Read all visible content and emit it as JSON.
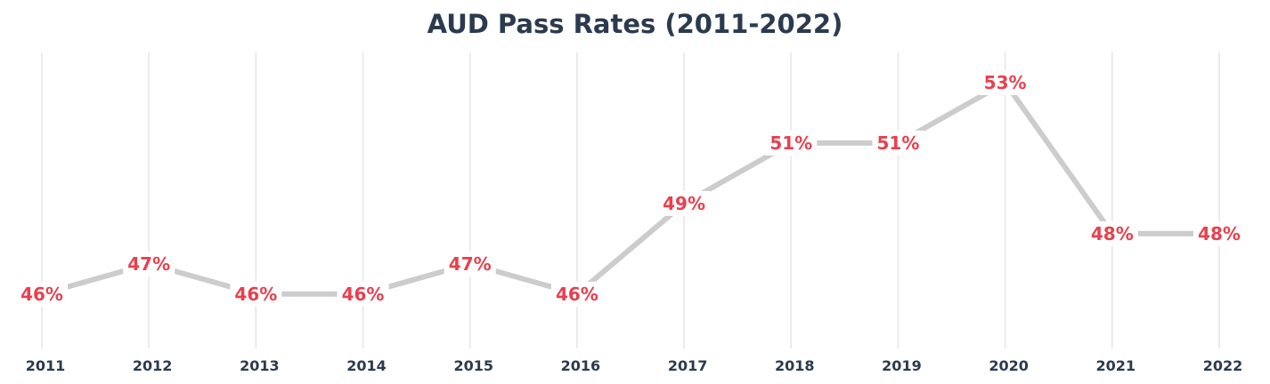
{
  "chart_data": {
    "type": "line",
    "title": "AUD Pass Rates (2011-2022)",
    "xlabel": "",
    "ylabel": "",
    "categories": [
      "2011",
      "2012",
      "2013",
      "2014",
      "2015",
      "2016",
      "2017",
      "2018",
      "2019",
      "2020",
      "2021",
      "2022"
    ],
    "series": [
      {
        "values": [
          46,
          47,
          46,
          46,
          47,
          46,
          49,
          51,
          51,
          53,
          48,
          48
        ],
        "labels": [
          "46%",
          "47%",
          "46%",
          "46%",
          "47%",
          "46%",
          "49%",
          "51%",
          "51%",
          "53%",
          "48%",
          "48%"
        ]
      }
    ],
    "ylim": [
      44.2,
      54
    ],
    "grid": "vertical",
    "legend": "none",
    "colors": {
      "line": "#cccccc",
      "label": "#e8404f",
      "text": "#2b3a4e",
      "grid": "#ebebeb"
    }
  }
}
